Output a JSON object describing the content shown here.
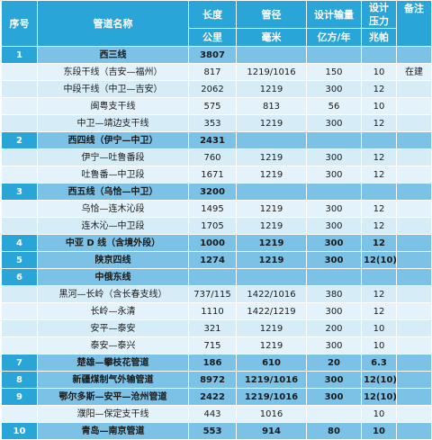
{
  "headers": {
    "no": "序号",
    "name": "管道名称",
    "length": "长度",
    "diameter": "管径",
    "capacity": "设计输量",
    "pressure_line1": "设计",
    "pressure_line2": "压力",
    "note": "备注",
    "unit_length": "公里",
    "unit_diameter": "毫米",
    "unit_capacity": "亿方/年",
    "unit_pressure": "兆帕"
  },
  "rows": [
    {
      "type": "group",
      "no": "1",
      "name": "西三线",
      "length": "3807",
      "diameter": "",
      "capacity": "",
      "pressure": "",
      "note": ""
    },
    {
      "type": "sub",
      "no": "",
      "name": "东段干线（吉安—福州）",
      "length": "817",
      "diameter": "1219/1016",
      "capacity": "150",
      "pressure": "10",
      "note": "在建"
    },
    {
      "type": "sub",
      "no": "",
      "name": "中段干线（中卫—吉安）",
      "length": "2062",
      "diameter": "1219",
      "capacity": "300",
      "pressure": "12",
      "note": ""
    },
    {
      "type": "sub",
      "no": "",
      "name": "闽粤支干线",
      "length": "575",
      "diameter": "813",
      "capacity": "56",
      "pressure": "10",
      "note": ""
    },
    {
      "type": "sub",
      "no": "",
      "name": "中卫—靖边支干线",
      "length": "353",
      "diameter": "1219",
      "capacity": "300",
      "pressure": "12",
      "note": ""
    },
    {
      "type": "group",
      "no": "2",
      "name": "西四线（伊宁—中卫）",
      "length": "2431",
      "diameter": "",
      "capacity": "",
      "pressure": "",
      "note": ""
    },
    {
      "type": "sub",
      "no": "",
      "name": "伊宁—吐鲁番段",
      "length": "760",
      "diameter": "1219",
      "capacity": "300",
      "pressure": "12",
      "note": ""
    },
    {
      "type": "sub",
      "no": "",
      "name": "吐鲁番—中卫段",
      "length": "1671",
      "diameter": "1219",
      "capacity": "300",
      "pressure": "12",
      "note": ""
    },
    {
      "type": "group",
      "no": "3",
      "name": "西五线（乌恰—中卫）",
      "length": "3200",
      "diameter": "",
      "capacity": "",
      "pressure": "",
      "note": ""
    },
    {
      "type": "sub",
      "no": "",
      "name": "乌恰—连木沁段",
      "length": "1495",
      "diameter": "1219",
      "capacity": "300",
      "pressure": "12",
      "note": ""
    },
    {
      "type": "sub",
      "no": "",
      "name": "连木沁—中卫段",
      "length": "1705",
      "diameter": "1219",
      "capacity": "300",
      "pressure": "12",
      "note": ""
    },
    {
      "type": "group",
      "no": "4",
      "name": "中亚 D 线（含境外段）",
      "length": "1000",
      "diameter": "1219",
      "capacity": "300",
      "pressure": "12",
      "note": ""
    },
    {
      "type": "group",
      "no": "5",
      "name": "陕京四线",
      "length": "1274",
      "diameter": "1219",
      "capacity": "300",
      "pressure": "12(10)",
      "note": ""
    },
    {
      "type": "group",
      "no": "6",
      "name": "中俄东线",
      "length": "",
      "diameter": "",
      "capacity": "",
      "pressure": "",
      "note": ""
    },
    {
      "type": "sub",
      "no": "",
      "name": "黑河—长岭（含长春支线）",
      "length": "737/115",
      "diameter": "1422/1016",
      "capacity": "380",
      "pressure": "12",
      "note": ""
    },
    {
      "type": "sub",
      "no": "",
      "name": "长岭—永清",
      "length": "1110",
      "diameter": "1422/1219",
      "capacity": "300",
      "pressure": "12",
      "note": ""
    },
    {
      "type": "sub",
      "no": "",
      "name": "安平—泰安",
      "length": "321",
      "diameter": "1219",
      "capacity": "200",
      "pressure": "10",
      "note": ""
    },
    {
      "type": "sub",
      "no": "",
      "name": "泰安—泰兴",
      "length": "715",
      "diameter": "1219",
      "capacity": "300",
      "pressure": "10",
      "note": ""
    },
    {
      "type": "group",
      "no": "7",
      "name": "楚雄—攀枝花管道",
      "length": "186",
      "diameter": "610",
      "capacity": "20",
      "pressure": "6.3",
      "note": ""
    },
    {
      "type": "group",
      "no": "8",
      "name": "新疆煤制气外输管道",
      "length": "8972",
      "diameter": "1219/1016",
      "capacity": "300",
      "pressure": "12(10)",
      "note": ""
    },
    {
      "type": "group",
      "no": "9",
      "name": "鄂尔多斯—安平—沧州管道",
      "length": "2422",
      "diameter": "1219/1016",
      "capacity": "300",
      "pressure": "12(10)",
      "note": ""
    },
    {
      "type": "sub",
      "no": "",
      "name": "濮阳—保定支干线",
      "length": "443",
      "diameter": "1016",
      "capacity": "",
      "pressure": "10",
      "note": ""
    },
    {
      "type": "group",
      "no": "10",
      "name": "青岛—南京管道",
      "length": "553",
      "diameter": "914",
      "capacity": "80",
      "pressure": "10",
      "note": ""
    }
  ]
}
